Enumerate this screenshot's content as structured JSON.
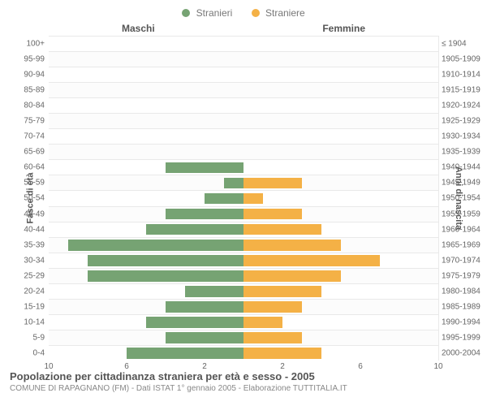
{
  "chart": {
    "type": "population-pyramid",
    "legend": {
      "male": {
        "label": "Stranieri",
        "color": "#76a373"
      },
      "female": {
        "label": "Straniere",
        "color": "#f4b146"
      }
    },
    "headers": {
      "male": "Maschi",
      "female": "Femmine"
    },
    "axis_titles": {
      "left": "Fasce di età",
      "right": "Anni di nascita"
    },
    "x": {
      "max": 10,
      "ticks": [
        10,
        6,
        2,
        2,
        6,
        10
      ]
    },
    "grid_color": "#e9e9e9",
    "center_axis_color": "#7a6a21",
    "background_color": "#ffffff",
    "tick_fontsize": 10,
    "label_fontsize": 10,
    "axis_title_fontsize": 11,
    "header_fontsize": 12,
    "legend_fontsize": 12,
    "rows": [
      {
        "age": "100+",
        "birth": "≤ 1904",
        "m": 0,
        "f": 0
      },
      {
        "age": "95-99",
        "birth": "1905-1909",
        "m": 0,
        "f": 0
      },
      {
        "age": "90-94",
        "birth": "1910-1914",
        "m": 0,
        "f": 0
      },
      {
        "age": "85-89",
        "birth": "1915-1919",
        "m": 0,
        "f": 0
      },
      {
        "age": "80-84",
        "birth": "1920-1924",
        "m": 0,
        "f": 0
      },
      {
        "age": "75-79",
        "birth": "1925-1929",
        "m": 0,
        "f": 0
      },
      {
        "age": "70-74",
        "birth": "1930-1934",
        "m": 0,
        "f": 0
      },
      {
        "age": "65-69",
        "birth": "1935-1939",
        "m": 0,
        "f": 0
      },
      {
        "age": "60-64",
        "birth": "1940-1944",
        "m": 4,
        "f": 0
      },
      {
        "age": "55-59",
        "birth": "1945-1949",
        "m": 1,
        "f": 3
      },
      {
        "age": "50-54",
        "birth": "1950-1954",
        "m": 2,
        "f": 1
      },
      {
        "age": "45-49",
        "birth": "1955-1959",
        "m": 4,
        "f": 3
      },
      {
        "age": "40-44",
        "birth": "1960-1964",
        "m": 5,
        "f": 4
      },
      {
        "age": "35-39",
        "birth": "1965-1969",
        "m": 9,
        "f": 5
      },
      {
        "age": "30-34",
        "birth": "1970-1974",
        "m": 8,
        "f": 7
      },
      {
        "age": "25-29",
        "birth": "1975-1979",
        "m": 8,
        "f": 5
      },
      {
        "age": "20-24",
        "birth": "1980-1984",
        "m": 3,
        "f": 4
      },
      {
        "age": "15-19",
        "birth": "1985-1989",
        "m": 4,
        "f": 3
      },
      {
        "age": "10-14",
        "birth": "1990-1994",
        "m": 5,
        "f": 2
      },
      {
        "age": "5-9",
        "birth": "1995-1999",
        "m": 4,
        "f": 3
      },
      {
        "age": "0-4",
        "birth": "2000-2004",
        "m": 6,
        "f": 4
      }
    ]
  },
  "footer": {
    "title": "Popolazione per cittadinanza straniera per età e sesso - 2005",
    "subtitle": "COMUNE DI RAPAGNANO (FM) - Dati ISTAT 1° gennaio 2005 - Elaborazione TUTTITALIA.IT"
  }
}
